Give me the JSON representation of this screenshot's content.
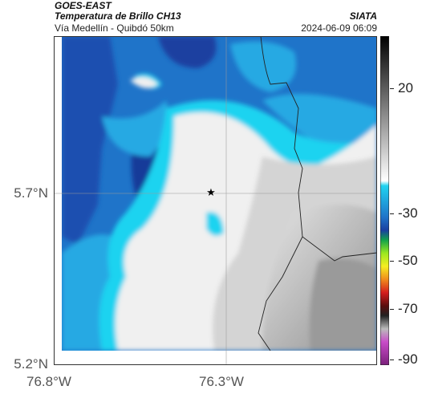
{
  "header": {
    "satellite": "GOES-EAST",
    "product": "Temperatura de Brillo CH13",
    "region": "Vía Medellín - Quibdó 50km",
    "agency": "SIATA",
    "datetime": "2024-06-09 06:09"
  },
  "axes": {
    "lat_ticks": [
      "5.7°N",
      "5.2°N"
    ],
    "lon_ticks": [
      "76.8°W",
      "76.3°W"
    ]
  },
  "colorbar": {
    "labels": [
      "20",
      "-30",
      "-50",
      "-70",
      "-90"
    ],
    "colors": {
      "dark_blue": "#1a3fa0",
      "mid_blue": "#1f74c9",
      "light_blue": "#26a9e3",
      "cyan": "#1fd3f0",
      "white": "#f0f0f0",
      "light_gray": "#d4d4d4",
      "gray": "#9a9a9a"
    }
  },
  "marker": {
    "symbol": "★"
  }
}
